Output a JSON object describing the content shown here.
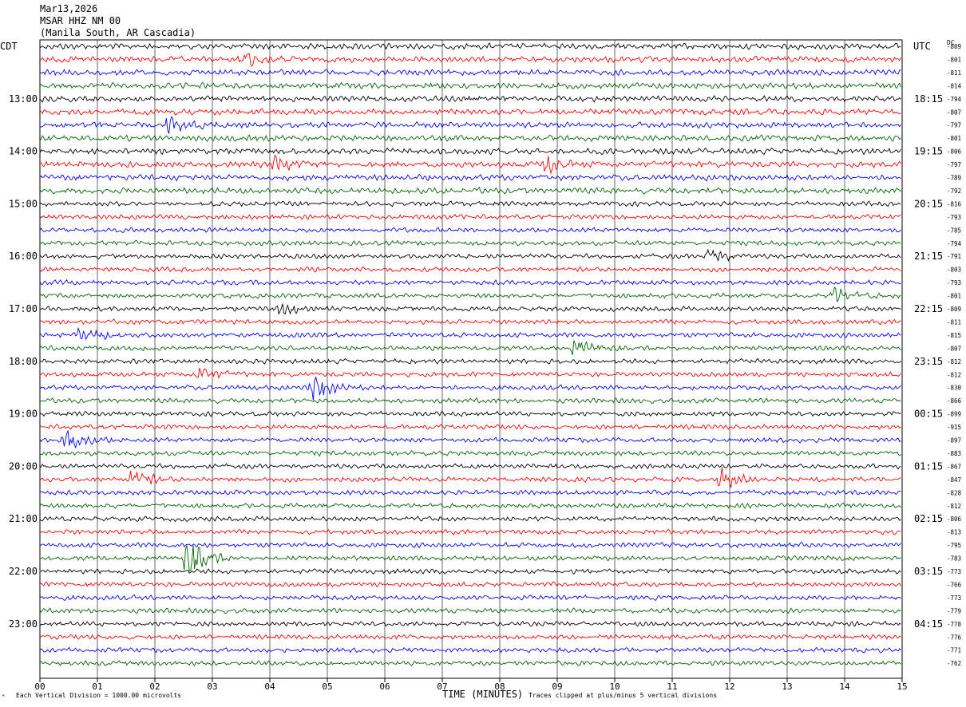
{
  "header": {
    "date": "Mar13,2026",
    "station": "MSAR HHZ NM 00",
    "location": "(Manila South, AR Cascadia)"
  },
  "left_tz": "CDT",
  "right_tz": "UTC",
  "dc_label": "DC",
  "footer": {
    "scale_note": "Each Vertical Division = 1000.00 microvolts",
    "clip_note": "Traces clipped at plus/minus 5 vertical divisions",
    "watermark": "^"
  },
  "chart_data": {
    "type": "line",
    "xlabel": "TIME (MINUTES)",
    "x_ticks": [
      "00",
      "01",
      "02",
      "03",
      "04",
      "05",
      "06",
      "07",
      "08",
      "09",
      "10",
      "11",
      "12",
      "13",
      "14",
      "15"
    ],
    "xlim": [
      0,
      15
    ],
    "left_hour_labels": [
      "13:00",
      "14:00",
      "15:00",
      "16:00",
      "17:00",
      "18:00",
      "19:00",
      "20:00",
      "21:00",
      "22:00",
      "23:00"
    ],
    "right_hour_labels": [
      "18:15",
      "19:15",
      "20:15",
      "21:15",
      "22:15",
      "23:15",
      "00:15",
      "01:15",
      "02:15",
      "03:15",
      "04:15"
    ],
    "trace_colors": [
      "#000000",
      "#ff0000",
      "#0000ff",
      "#006600"
    ],
    "dc_offsets": [
      -809,
      -801,
      -811,
      -814,
      -794,
      -807,
      -797,
      -801,
      -806,
      -797,
      -789,
      -792,
      -816,
      -793,
      -785,
      -794,
      -791,
      -803,
      -793,
      -801,
      -809,
      -811,
      -815,
      -807,
      -812,
      -812,
      -830,
      -866,
      -899,
      -915,
      -897,
      -883,
      -867,
      -847,
      -828,
      -812,
      -806,
      -813,
      -795,
      -783,
      -773,
      -766,
      -773,
      -779,
      -778,
      -776,
      -771,
      -762
    ],
    "events": [
      {
        "trace": 1,
        "minute": 3.5,
        "amp": 2.0
      },
      {
        "trace": 6,
        "minute": 2.2,
        "amp": 1.8
      },
      {
        "trace": 9,
        "minute": 8.8,
        "amp": 1.8
      },
      {
        "trace": 9,
        "minute": 4.1,
        "amp": 1.5
      },
      {
        "trace": 16,
        "minute": 11.6,
        "amp": 2.0
      },
      {
        "trace": 19,
        "minute": 13.8,
        "amp": 1.8
      },
      {
        "trace": 20,
        "minute": 4.2,
        "amp": 1.5
      },
      {
        "trace": 22,
        "minute": 0.7,
        "amp": 2.5
      },
      {
        "trace": 23,
        "minute": 9.3,
        "amp": 2.0
      },
      {
        "trace": 25,
        "minute": 2.75,
        "amp": 1.5
      },
      {
        "trace": 26,
        "minute": 4.75,
        "amp": 3.5
      },
      {
        "trace": 30,
        "minute": 0.4,
        "amp": 3.5
      },
      {
        "trace": 33,
        "minute": 1.6,
        "amp": 2.0
      },
      {
        "trace": 33,
        "minute": 11.85,
        "amp": 2.5
      },
      {
        "trace": 39,
        "minute": 2.55,
        "amp": 5.0
      }
    ]
  }
}
